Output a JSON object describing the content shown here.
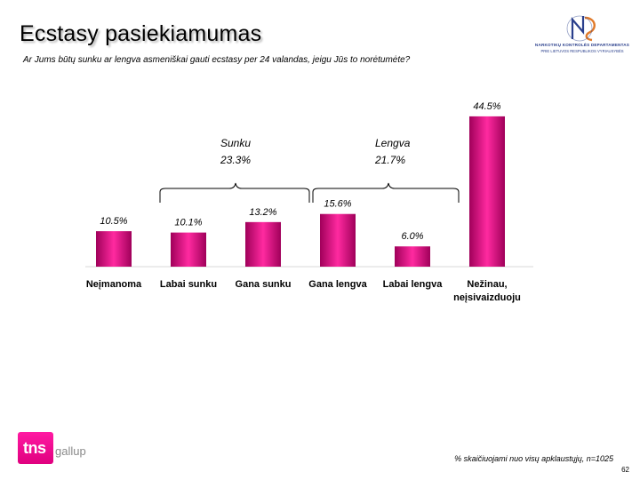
{
  "header": {
    "title": "Ecstasy pasiekiamumas",
    "question": "Ar Jums būtų sunku ar lengva asmeniškai gauti ecstasy per 24 valandas, jeigu Jūs to norėtumėte?"
  },
  "org_logo": {
    "line1": "NARKOTIKŲ KONTROLĖS DEPARTAMENTAS",
    "line2": "PRIE LIETUVOS RESPUBLIKOS VYRIAUSYBĖS",
    "colors": {
      "primary": "#2a3f8c",
      "accent": "#e07a2a"
    }
  },
  "groups": [
    {
      "label": "Sunku",
      "value": "23.3%"
    },
    {
      "label": "Lengva",
      "value": "21.7%"
    }
  ],
  "chart_data": {
    "type": "bar",
    "categories": [
      "Neįmanoma",
      "Labai sunku",
      "Gana sunku",
      "Gana lengva",
      "Labai lengva",
      "Nežinau, neįsivaizduoju"
    ],
    "values": [
      10.5,
      10.1,
      13.2,
      15.6,
      6.0,
      44.5
    ],
    "value_labels": [
      "10.5%",
      "10.1%",
      "13.2%",
      "15.6%",
      "6.0%",
      "44.5%"
    ],
    "ylim": [
      0,
      50
    ],
    "grid": false,
    "bar_color": "#e0127f"
  },
  "footer": {
    "note": "% skaičiuojami nuo visų apklaustųjų, n=1025",
    "page": "62",
    "logo_text": "tns",
    "logo_sub": "gallup",
    "logo_color": "#e6007e"
  }
}
